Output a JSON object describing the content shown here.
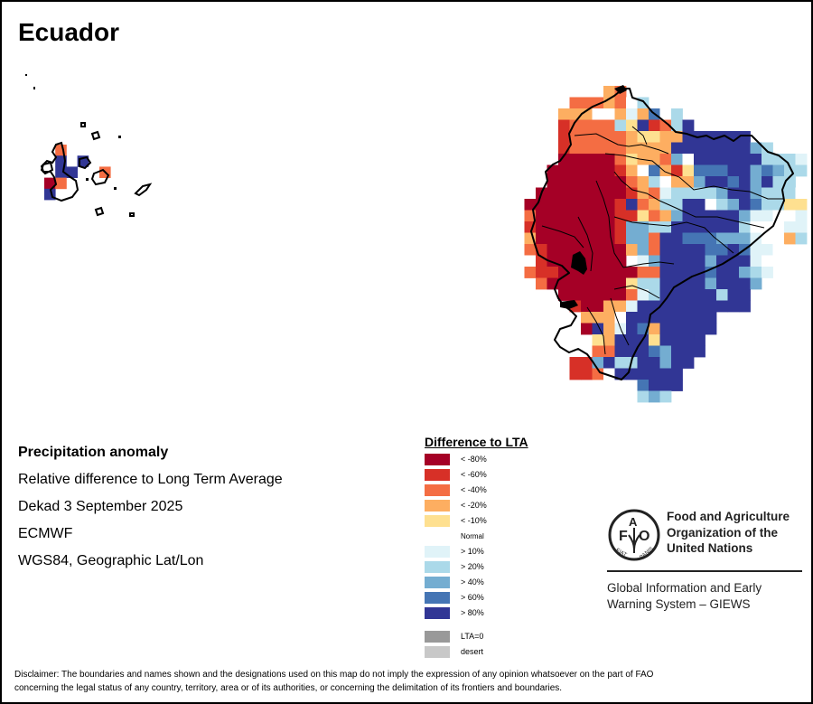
{
  "title": "Ecuador",
  "info": {
    "heading": "Precipitation anomaly",
    "line1": "Relative difference to Long Term Average",
    "line2": "Dekad 3 September 2025",
    "line3": "ECMWF",
    "line4": "WGS84, Geographic Lat/Lon"
  },
  "legend": {
    "title": "Difference to LTA",
    "items": [
      {
        "code": "a",
        "label": "< -80%",
        "color": "#a50026"
      },
      {
        "code": "b",
        "label": "< -60%",
        "color": "#d73027"
      },
      {
        "code": "c",
        "label": "< -40%",
        "color": "#f46d43"
      },
      {
        "code": "d",
        "label": "< -20%",
        "color": "#fdae61"
      },
      {
        "code": "e",
        "label": "< -10%",
        "color": "#fee090"
      },
      {
        "code": "N",
        "label": "Normal",
        "color": "#ffffff"
      },
      {
        "code": "f",
        "label": "> 10%",
        "color": "#e0f3f8"
      },
      {
        "code": "g",
        "label": "> 20%",
        "color": "#abd9e9"
      },
      {
        "code": "h",
        "label": "> 40%",
        "color": "#74add1"
      },
      {
        "code": "i",
        "label": "> 60%",
        "color": "#4575b4"
      },
      {
        "code": "j",
        "label": "> 80%",
        "color": "#313695"
      }
    ],
    "extra": [
      {
        "label": "LTA=0",
        "color": "#999999"
      },
      {
        "label": "desert",
        "color": "#c8c8c8"
      }
    ]
  },
  "fao": {
    "org_line1": "Food and Agriculture",
    "org_line2": "Organization of the",
    "org_line3": "United Nations",
    "logo_letters": "FAO",
    "logo_motto": "FIAT PANIS",
    "giews_line1": "Global Information and Early",
    "giews_line2": "Warning System – GIEWS"
  },
  "disclaimer_line1": "Disclaimer: The boundaries and names shown and the designations used on this map do not imply the expression of any opinion whatsoever on the part of FAO",
  "disclaimer_line2": "concerning the legal status of any country, territory, area or of its authorities, or concerning the delimitation of its frontiers and boundaries.",
  "raster_mainland": [
    "0000000dc00000000000000",
    "0000cccdcNg000000000000",
    "000dddNNdfdiNg000000000",
    "000bccccgejbcgj00000000",
    "000bcccccdeeddjjjjjj000",
    "000bcccccddddjjjjjjjhg0",
    "000aaaaaceddchNjjjjjjgggf",
    "00aaaaaabdNidbeiiijjhihgg",
    "00aaaaaaacdgNddhjjijhjgg0",
    "0aaaaaaaabdcfgggghjjhgggNd",
    "aaaaaaaabjcdggjjNghjiggeeN",
    "caaaaaaabbecdhjjjjjhffNNf0",
    "baaaaaaabhhggjjjjjjgNNNff0",
    "daaaaaaabhhcjjiiihhhfNNdg",
    "cbaaaaaaadhcjjjjiijiffN00",
    "Nbaaaaaaa0fhjjjjhjjjfN000",
    "cbbaaaaaaaccjjjjijjhgf000",
    "0caaaaaaaeggjjjjhjjjh0000",
    "000aaaaaacfgjjjjjgjj00000",
    "0000baaddfjjjjjjjjjj00000",
    "00000dddNjjjjjjjj00000000",
    "00000ajdfjidjjjjj00000000",
    "000000edjjjejjjj000000000",
    "000000ccjjjihjjj000000000",
    "0000bbhjggjjhjj0000000000",
    "0000bbcNjjjjjj00000000000",
    "0000000000ijjj00000000000",
    "0000000000ghg000000000000"
  ],
  "raster_galapagos": [
    "0c0000",
    "0j0j00",
    "0jj00c",
    "ac0000",
    "j00000"
  ]
}
